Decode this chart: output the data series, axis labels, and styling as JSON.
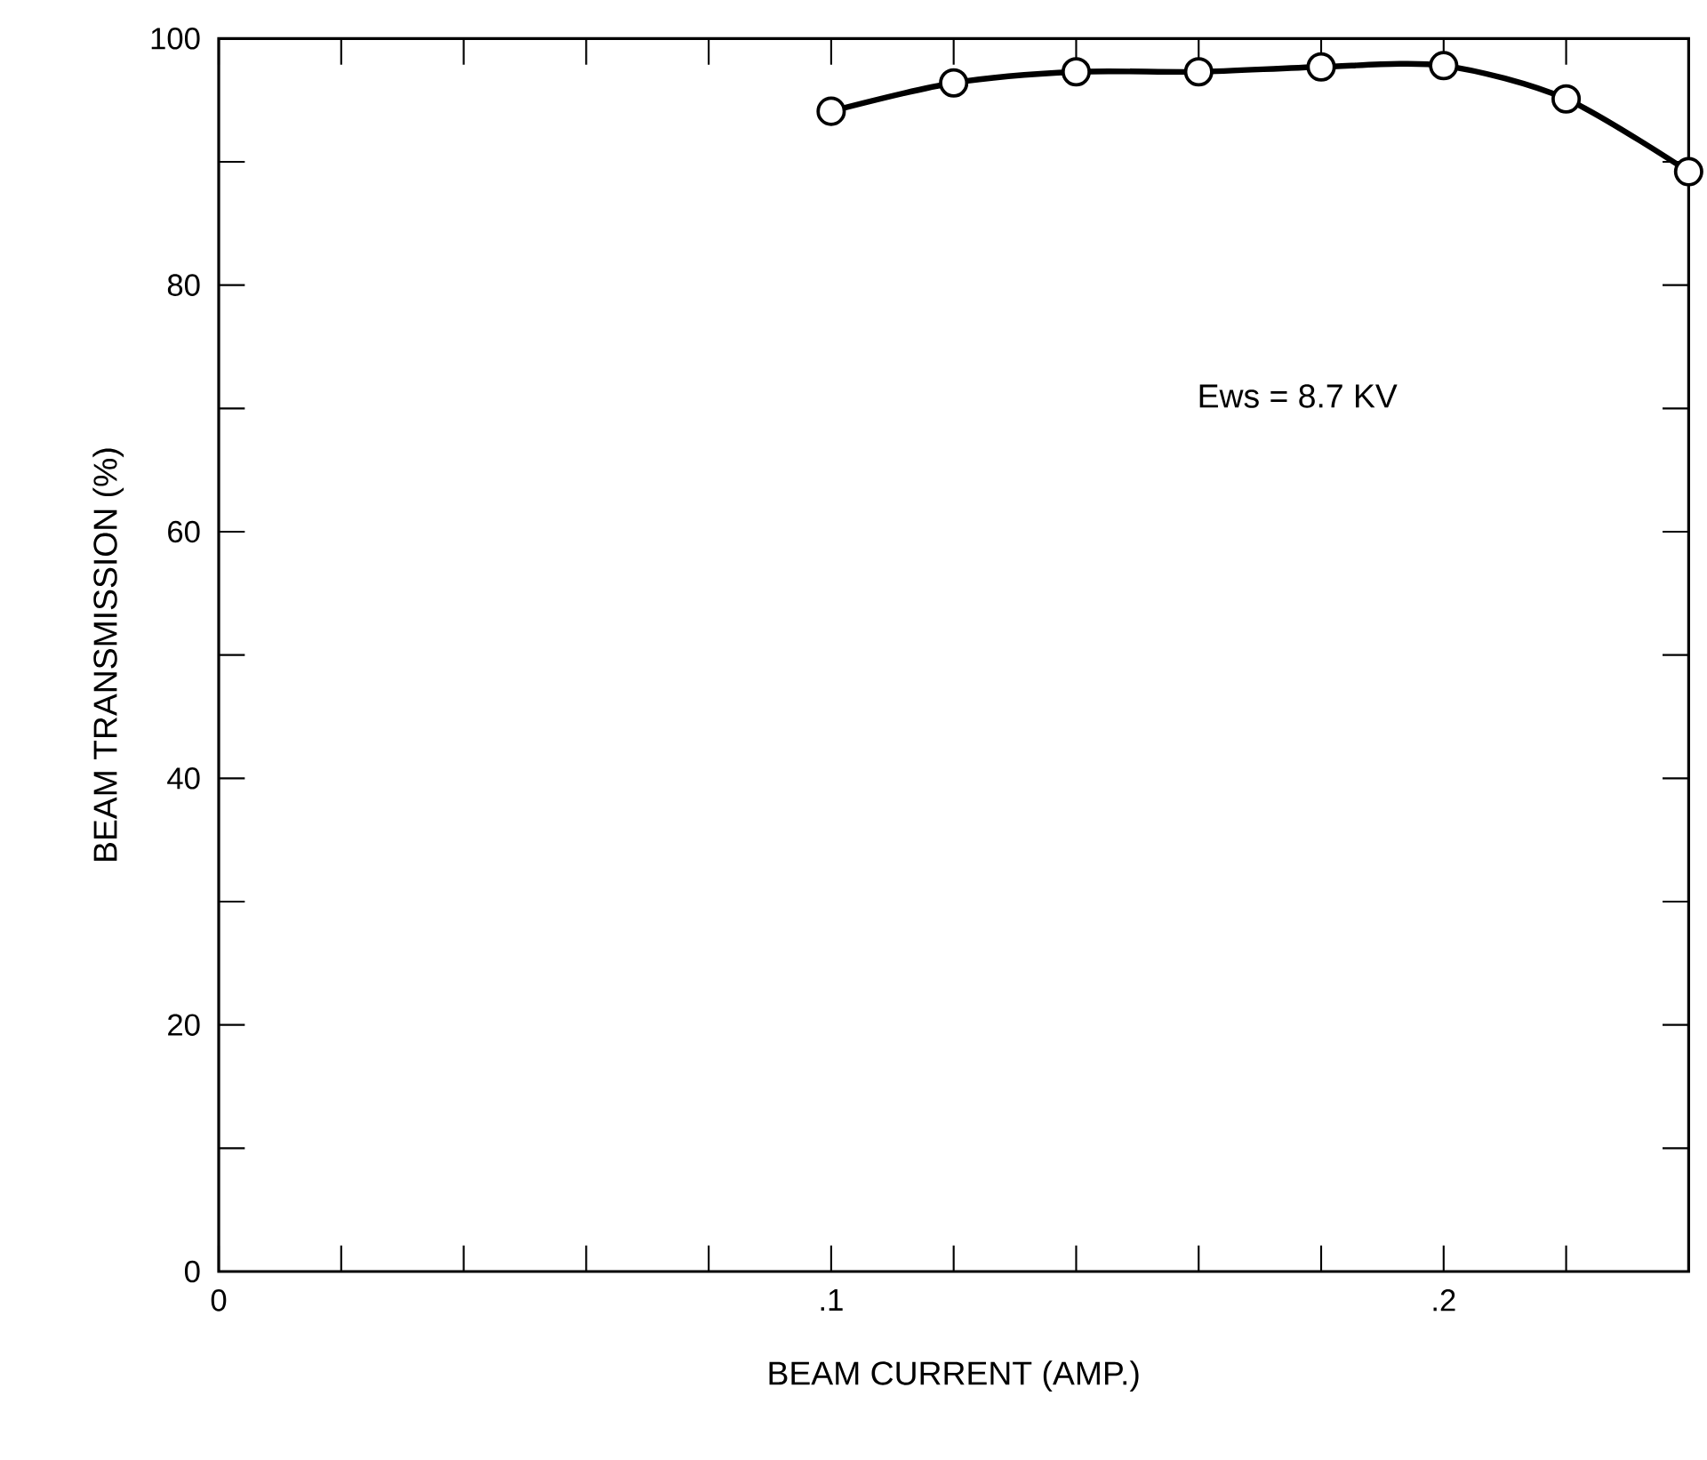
{
  "chart_data": {
    "type": "line",
    "xlabel": "BEAM CURRENT (AMP.)",
    "ylabel": "BEAM TRANSMISSION (%)",
    "annotations": [
      "Ews = 8.7 KV"
    ],
    "x": [
      0.1,
      0.12,
      0.14,
      0.16,
      0.18,
      0.2,
      0.22,
      0.24
    ],
    "series": [
      {
        "color": "#000000",
        "values": [
          94.1,
          96.4,
          97.3,
          97.3,
          97.7,
          97.8,
          95.1,
          89.2
        ]
      }
    ],
    "xlim": [
      0,
      0.24
    ],
    "xticks": [
      0,
      {
        "value": 0.02,
        "label": null
      },
      {
        "value": 0.04,
        "label": null
      },
      {
        "value": 0.06,
        "label": null
      },
      {
        "value": 0.08,
        "label": null
      },
      {
        "value": 0.1,
        "label": ".1"
      },
      {
        "value": 0.12,
        "label": null
      },
      {
        "value": 0.14,
        "label": null
      },
      {
        "value": 0.16,
        "label": null
      },
      {
        "value": 0.18,
        "label": null
      },
      {
        "value": 0.2,
        "label": ".2"
      },
      {
        "value": 0.22,
        "label": null
      }
    ],
    "ylim": [
      0,
      100
    ],
    "yticks": [
      0,
      {
        "value": 10,
        "label": null
      },
      20,
      {
        "value": 30,
        "label": null
      },
      40,
      {
        "value": 50,
        "label": null
      },
      60,
      {
        "value": 70,
        "label": null
      },
      80,
      {
        "value": 90,
        "label": null
      },
      100
    ],
    "marker": "circle",
    "line_style": "solid"
  }
}
